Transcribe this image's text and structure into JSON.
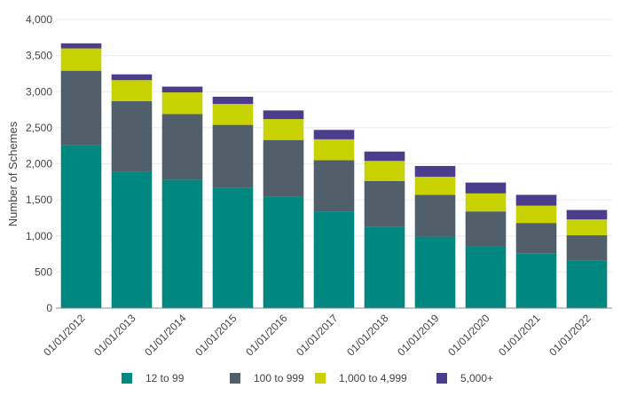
{
  "chart_data": {
    "type": "bar",
    "stacked": true,
    "title": "",
    "xlabel": "",
    "ylabel": "Number of Schemes",
    "ylim": [
      0,
      4000
    ],
    "yticks": [
      0,
      500,
      1000,
      1500,
      2000,
      2500,
      3000,
      3500,
      4000
    ],
    "ytick_labels": [
      "0",
      "500",
      "1,000",
      "1,500",
      "2,000",
      "2,500",
      "3,000",
      "3,500",
      "4,000"
    ],
    "grid": true,
    "legend_position": "bottom",
    "categories": [
      "01/01/2012",
      "01/01/2013",
      "01/01/2014",
      "01/01/2015",
      "01/01/2016",
      "01/01/2017",
      "01/01/2018",
      "01/01/2019",
      "01/01/2020",
      "01/01/2021",
      "01/01/2022"
    ],
    "series": [
      {
        "name": "12 to 99",
        "color": "#00877f",
        "values": [
          2260,
          1890,
          1780,
          1670,
          1540,
          1340,
          1130,
          990,
          850,
          760,
          660
        ]
      },
      {
        "name": "100 to 999",
        "color": "#515f6a",
        "values": [
          1030,
          980,
          910,
          870,
          790,
          710,
          630,
          580,
          490,
          420,
          350
        ]
      },
      {
        "name": "1,000 to 4,999",
        "color": "#c8d200",
        "values": [
          310,
          290,
          300,
          290,
          290,
          290,
          280,
          250,
          250,
          240,
          220
        ]
      },
      {
        "name": "5,000+",
        "color": "#4b3c8c",
        "values": [
          70,
          80,
          80,
          100,
          120,
          130,
          130,
          150,
          150,
          150,
          130
        ]
      }
    ]
  }
}
